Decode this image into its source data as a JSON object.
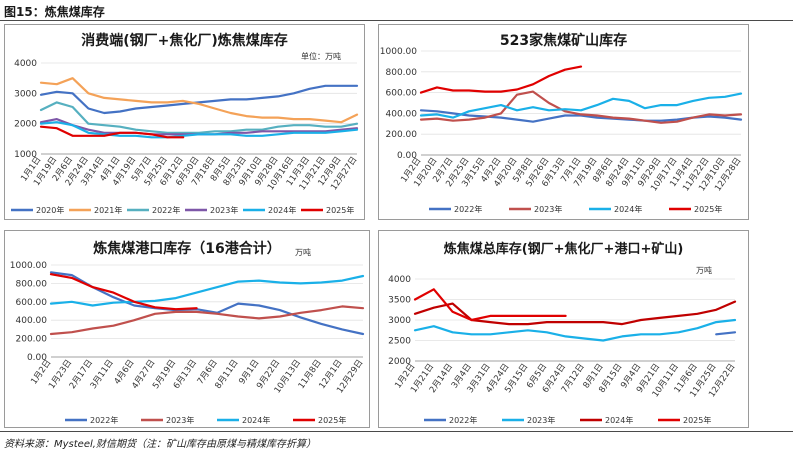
{
  "figure": {
    "title": "图15：炼焦煤库存",
    "source": "资料来源：Mysteel,财信期货（注：矿山库存由原煤与精煤库存折算）"
  },
  "colors": {
    "2020": "#4472c4",
    "2021": "#f4a258",
    "2022_p1": "#56b0c0",
    "2023_p1": "#7e57a8",
    "2024_p1": "#1ab0e8",
    "2025": "#e00000",
    "2022": "#4472c4",
    "2023": "#c0504d",
    "2024": "#1ab0e8",
    "2023_tot": "#1ab0e8",
    "2024_tot": "#c00000"
  },
  "chart_data": [
    {
      "id": "p1",
      "type": "line",
      "title": "消费端(钢厂+焦化厂)炼焦煤库存",
      "unit": "单位：万吨",
      "ylim": [
        1000,
        4000
      ],
      "yticks": [
        1000,
        2000,
        3000,
        4000
      ],
      "xticks": [
        "1月1日",
        "1月19日",
        "2月6日",
        "2月24日",
        "3月14日",
        "4月1日",
        "4月19日",
        "5月7日",
        "5月25日",
        "6月12日",
        "6月30日",
        "7月18日",
        "8月5日",
        "8月23日",
        "9月10日",
        "9月28日",
        "10月16日",
        "11月3日",
        "11月21日",
        "12月9日",
        "12月27日"
      ],
      "series": [
        {
          "name": "2020年",
          "color_key": "2020",
          "values": [
            2950,
            3050,
            3000,
            2500,
            2350,
            2400,
            2500,
            2550,
            2600,
            2650,
            2700,
            2750,
            2800,
            2800,
            2850,
            2900,
            3000,
            3150,
            3250,
            3250,
            3250
          ]
        },
        {
          "name": "2021年",
          "color_key": "2021",
          "values": [
            3350,
            3300,
            3500,
            3000,
            2850,
            2800,
            2750,
            2700,
            2700,
            2750,
            2650,
            2500,
            2350,
            2250,
            2200,
            2200,
            2150,
            2150,
            2100,
            2050,
            2300
          ]
        },
        {
          "name": "2022年",
          "color_key": "2022_p1",
          "values": [
            2450,
            2700,
            2550,
            2000,
            1950,
            1900,
            1800,
            1750,
            1700,
            1700,
            1700,
            1750,
            1750,
            1800,
            1800,
            1900,
            1950,
            1950,
            1900,
            1900,
            2000
          ]
        },
        {
          "name": "2023年",
          "color_key": "2023_p1",
          "values": [
            2050,
            2150,
            1950,
            1800,
            1700,
            1700,
            1700,
            1650,
            1650,
            1650,
            1650,
            1650,
            1700,
            1700,
            1750,
            1750,
            1750,
            1750,
            1750,
            1800,
            1850
          ]
        },
        {
          "name": "2024年",
          "color_key": "2024_p1",
          "values": [
            2000,
            2050,
            1950,
            1700,
            1650,
            1600,
            1600,
            1550,
            1550,
            1600,
            1650,
            1650,
            1650,
            1600,
            1600,
            1650,
            1700,
            1700,
            1700,
            1750,
            1800
          ]
        },
        {
          "name": "2025年",
          "color_key": "2025",
          "values": [
            1900,
            1850,
            1600,
            1600,
            1600,
            1700,
            1700,
            1650,
            1550,
            1550,
            null,
            null,
            null,
            null,
            null,
            null,
            null,
            null,
            null,
            null,
            null
          ]
        }
      ]
    },
    {
      "id": "p2",
      "type": "line",
      "title": "523家焦煤矿山库存",
      "unit": "",
      "ylim": [
        0,
        1000
      ],
      "yticks": [
        "0.00",
        "200.00",
        "400.00",
        "600.00",
        "800.00",
        "1000.00"
      ],
      "xticks": [
        "1月2日",
        "1月20日",
        "2月7日",
        "2月25日",
        "3月15日",
        "4月2日",
        "4月20日",
        "5月8日",
        "5月26日",
        "6月13日",
        "7月1日",
        "7月19日",
        "8月6日",
        "8月24日",
        "9月11日",
        "9月29日",
        "10月17日",
        "11月4日",
        "11月22日",
        "12月10日",
        "12月28日"
      ],
      "series": [
        {
          "name": "2022年",
          "color_key": "2022",
          "values": [
            430,
            420,
            400,
            380,
            370,
            360,
            340,
            320,
            350,
            380,
            380,
            360,
            350,
            340,
            330,
            330,
            340,
            360,
            370,
            360,
            340
          ]
        },
        {
          "name": "2023年",
          "color_key": "2023",
          "values": [
            340,
            350,
            330,
            340,
            360,
            400,
            580,
            610,
            500,
            420,
            390,
            380,
            360,
            350,
            330,
            310,
            320,
            360,
            390,
            380,
            390
          ]
        },
        {
          "name": "2024年",
          "color_key": "2024",
          "values": [
            380,
            390,
            360,
            420,
            450,
            480,
            430,
            460,
            430,
            440,
            430,
            480,
            540,
            520,
            450,
            480,
            480,
            520,
            550,
            560,
            590
          ]
        },
        {
          "name": "2025年",
          "color_key": "2025",
          "values": [
            600,
            650,
            620,
            620,
            610,
            610,
            630,
            680,
            760,
            820,
            850,
            null,
            null,
            null,
            null,
            null,
            null,
            null,
            null,
            null,
            null
          ]
        }
      ]
    },
    {
      "id": "p3",
      "type": "line",
      "title": "炼焦煤港口库存（16港合计）",
      "unit": "万吨",
      "ylim": [
        0,
        1000
      ],
      "yticks": [
        "0.00",
        "200.00",
        "400.00",
        "600.00",
        "800.00",
        "1000.00"
      ],
      "xticks": [
        "1月2日",
        "1月23日",
        "2月17日",
        "3月11日",
        "4月6日",
        "4月27日",
        "5月19日",
        "6月13日",
        "7月6日",
        "8月11日",
        "9月1日",
        "9月22日",
        "10月13日",
        "11月8日",
        "12月1日",
        "12月29日"
      ],
      "series": [
        {
          "name": "2022年",
          "color_key": "2022",
          "values": [
            920,
            890,
            760,
            650,
            560,
            530,
            510,
            520,
            480,
            580,
            560,
            510,
            430,
            360,
            300,
            250
          ]
        },
        {
          "name": "2023年",
          "color_key": "2023",
          "values": [
            250,
            270,
            310,
            340,
            400,
            470,
            490,
            490,
            470,
            440,
            420,
            440,
            480,
            510,
            550,
            530
          ]
        },
        {
          "name": "2024年",
          "color_key": "2024",
          "values": [
            580,
            600,
            560,
            590,
            600,
            610,
            640,
            700,
            760,
            820,
            830,
            810,
            800,
            810,
            830,
            880
          ]
        },
        {
          "name": "2025年",
          "color_key": "2025",
          "values": [
            900,
            860,
            760,
            700,
            600,
            540,
            520,
            530,
            null,
            null,
            null,
            null,
            null,
            null,
            null,
            null
          ]
        }
      ]
    },
    {
      "id": "p4",
      "type": "line",
      "title": "炼焦煤总库存(钢厂+焦化厂+港口+矿山)",
      "unit": "万吨",
      "ylim": [
        2000,
        4000
      ],
      "yticks": [
        2000,
        2500,
        3000,
        3500,
        4000
      ],
      "xticks": [
        "1月2日",
        "1月21日",
        "2月14日",
        "3月4日",
        "3月31日",
        "4月24日",
        "5月15日",
        "6月5日",
        "6月24日",
        "7月12日",
        "8月1日",
        "8月15日",
        "9月4日",
        "9月21日",
        "10月11日",
        "11月6日",
        "11月25日",
        "12月22日"
      ],
      "series": [
        {
          "name": "2022年",
          "color_key": "2022",
          "values": [
            null,
            null,
            null,
            null,
            null,
            null,
            null,
            null,
            null,
            null,
            null,
            null,
            null,
            null,
            null,
            null,
            2650,
            2700
          ]
        },
        {
          "name": "2023年",
          "color_key": "2023_tot",
          "values": [
            2750,
            2850,
            2700,
            2650,
            2650,
            2700,
            2750,
            2700,
            2600,
            2550,
            2500,
            2600,
            2650,
            2650,
            2700,
            2800,
            2950,
            3000
          ]
        },
        {
          "name": "2024年",
          "color_key": "2024_tot",
          "values": [
            3150,
            3300,
            3400,
            3000,
            2950,
            2900,
            2900,
            2950,
            2950,
            2950,
            2950,
            2900,
            3000,
            3050,
            3100,
            3150,
            3250,
            3450
          ]
        },
        {
          "name": "2025年",
          "color_key": "2025",
          "values": [
            3500,
            3750,
            3200,
            3000,
            3100,
            3100,
            3100,
            3100,
            3100,
            null,
            null,
            null,
            null,
            null,
            null,
            null,
            null,
            null
          ]
        }
      ]
    }
  ]
}
